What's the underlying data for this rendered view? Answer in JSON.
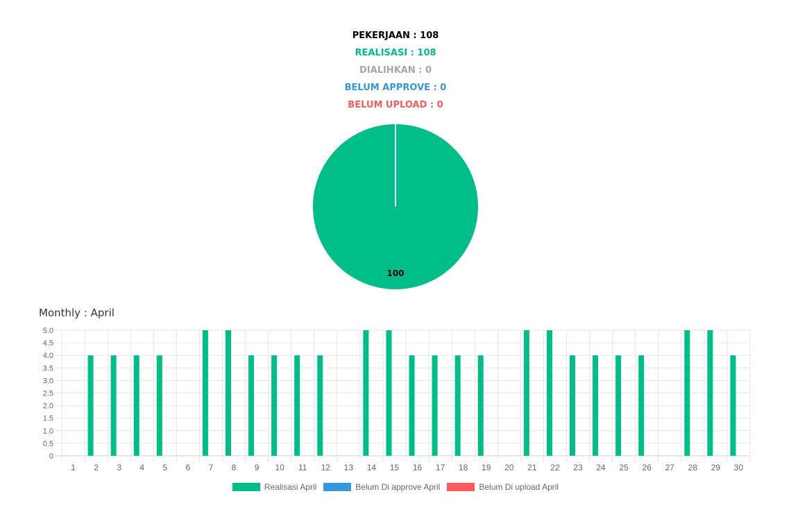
{
  "summary": {
    "pekerjaan": "PEKERJAAN : 108",
    "realisasi": "REALISASI : 108",
    "dialihkan": "DIALIHKAN : 0",
    "belum_approve": "BELUM APPROVE : 0",
    "belum_upload": "BELUM UPLOAD : 0"
  },
  "colors": {
    "realisasi": "#00BE88",
    "approve": "#3498DB",
    "upload": "#FF5B5B",
    "dialihkan": "#A6A6A6",
    "text": "#000000"
  },
  "monthly_title": "Monthly : April",
  "chart_data": [
    {
      "type": "pie",
      "values": [
        100,
        0,
        0,
        0
      ],
      "data_labels": [
        "100"
      ],
      "colors": [
        "#00BE88",
        "#A6A6A6",
        "#3498DB",
        "#FF5B5B"
      ]
    },
    {
      "type": "bar",
      "categories": [
        "1",
        "2",
        "3",
        "4",
        "5",
        "6",
        "7",
        "8",
        "9",
        "10",
        "11",
        "12",
        "13",
        "14",
        "15",
        "16",
        "17",
        "18",
        "19",
        "20",
        "21",
        "22",
        "23",
        "24",
        "25",
        "26",
        "27",
        "28",
        "29",
        "30"
      ],
      "series": [
        {
          "name": "Realisasi April",
          "color": "#00BE88",
          "values": [
            0,
            4,
            4,
            4,
            4,
            0,
            5,
            5,
            4,
            4,
            4,
            4,
            0,
            5,
            5,
            4,
            4,
            4,
            4,
            0,
            5,
            5,
            4,
            4,
            4,
            4,
            0,
            5,
            5,
            4
          ]
        },
        {
          "name": "Belum Di approve April",
          "color": "#3498DB",
          "values": [
            0,
            0,
            0,
            0,
            0,
            0,
            0,
            0,
            0,
            0,
            0,
            0,
            0,
            0,
            0,
            0,
            0,
            0,
            0,
            0,
            0,
            0,
            0,
            0,
            0,
            0,
            0,
            0,
            0,
            0
          ]
        },
        {
          "name": "Belum Di upload April",
          "color": "#FF5B5B",
          "values": [
            0,
            0,
            0,
            0,
            0,
            0,
            0,
            0,
            0,
            0,
            0,
            0,
            0,
            0,
            0,
            0,
            0,
            0,
            0,
            0,
            0,
            0,
            0,
            0,
            0,
            0,
            0,
            0,
            0,
            0
          ]
        }
      ],
      "ylim": [
        0,
        5
      ],
      "yticks": [
        "0",
        "0.5",
        "1.0",
        "1.5",
        "2.0",
        "2.5",
        "3.0",
        "3.5",
        "4.0",
        "4.5",
        "5.0"
      ],
      "grid": true,
      "legend_position": "bottom"
    }
  ]
}
